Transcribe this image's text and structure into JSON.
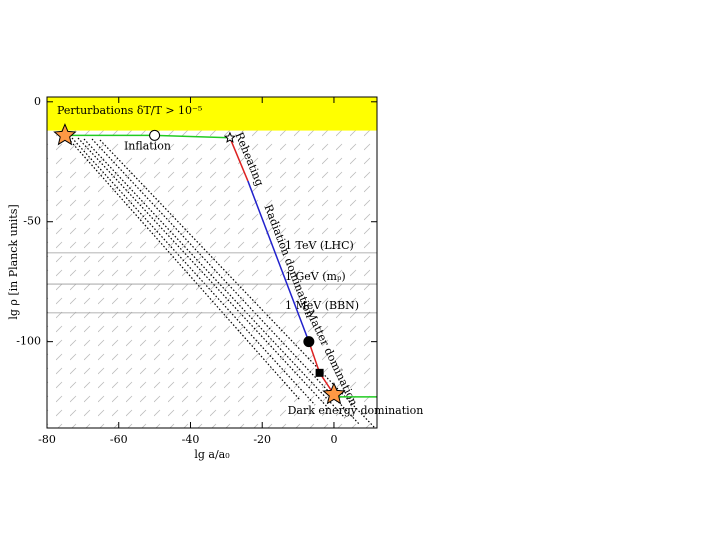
{
  "chart_data": {
    "type": "line",
    "x_label": "lg a/a₀",
    "y_label": "lg ρ [in Planck units]",
    "xlim": [
      -80,
      12
    ],
    "ylim": [
      -136,
      2
    ],
    "xticks": [
      -80,
      -60,
      -40,
      -20,
      0
    ],
    "yticks": [
      -100,
      -50,
      0
    ],
    "band": {
      "label": "Perturbations δT/T > 10⁻⁵",
      "range": [
        -12,
        2
      ],
      "color": "#ffff00"
    },
    "series": [
      {
        "name": "Inflation",
        "color": "#22cc22",
        "x": [
          -75,
          -50,
          -29
        ],
        "values": [
          -14,
          -14,
          -15
        ]
      },
      {
        "name": "Reheating",
        "color": "#dd2222",
        "x": [
          -29,
          -24
        ],
        "values": [
          -15,
          -33
        ]
      },
      {
        "name": "Radiation domination",
        "color": "#2222cc",
        "x": [
          -24,
          -7
        ],
        "values": [
          -33,
          -100
        ]
      },
      {
        "name": "Matter domination",
        "color": "#dd2222",
        "x": [
          -7,
          -4,
          0
        ],
        "values": [
          -100,
          -113,
          -122
        ]
      },
      {
        "name": "Dark energy domination",
        "color": "#22cc22",
        "x": [
          0,
          12
        ],
        "values": [
          -123,
          -123
        ]
      }
    ],
    "reference_lines": [
      {
        "label": "1 TeV (LHC)",
        "value": -63
      },
      {
        "label": "1 GeV (mₚ)",
        "value": -76
      },
      {
        "label": "1 MeV (BBN)",
        "value": -88
      }
    ],
    "markers": [
      {
        "x": -75,
        "y": -14,
        "shape": "star",
        "color": "#ff9944"
      },
      {
        "x": -50,
        "y": -14,
        "shape": "circle",
        "color": "#ffffff"
      },
      {
        "x": -29,
        "y": -15,
        "shape": "small-star",
        "color": "#ffffff"
      },
      {
        "x": -7,
        "y": -100,
        "shape": "dot",
        "color": "#000000"
      },
      {
        "x": -4,
        "y": -113,
        "shape": "square",
        "color": "#000000"
      },
      {
        "x": 0,
        "y": -122,
        "shape": "star",
        "color": "#ff9944"
      }
    ]
  }
}
